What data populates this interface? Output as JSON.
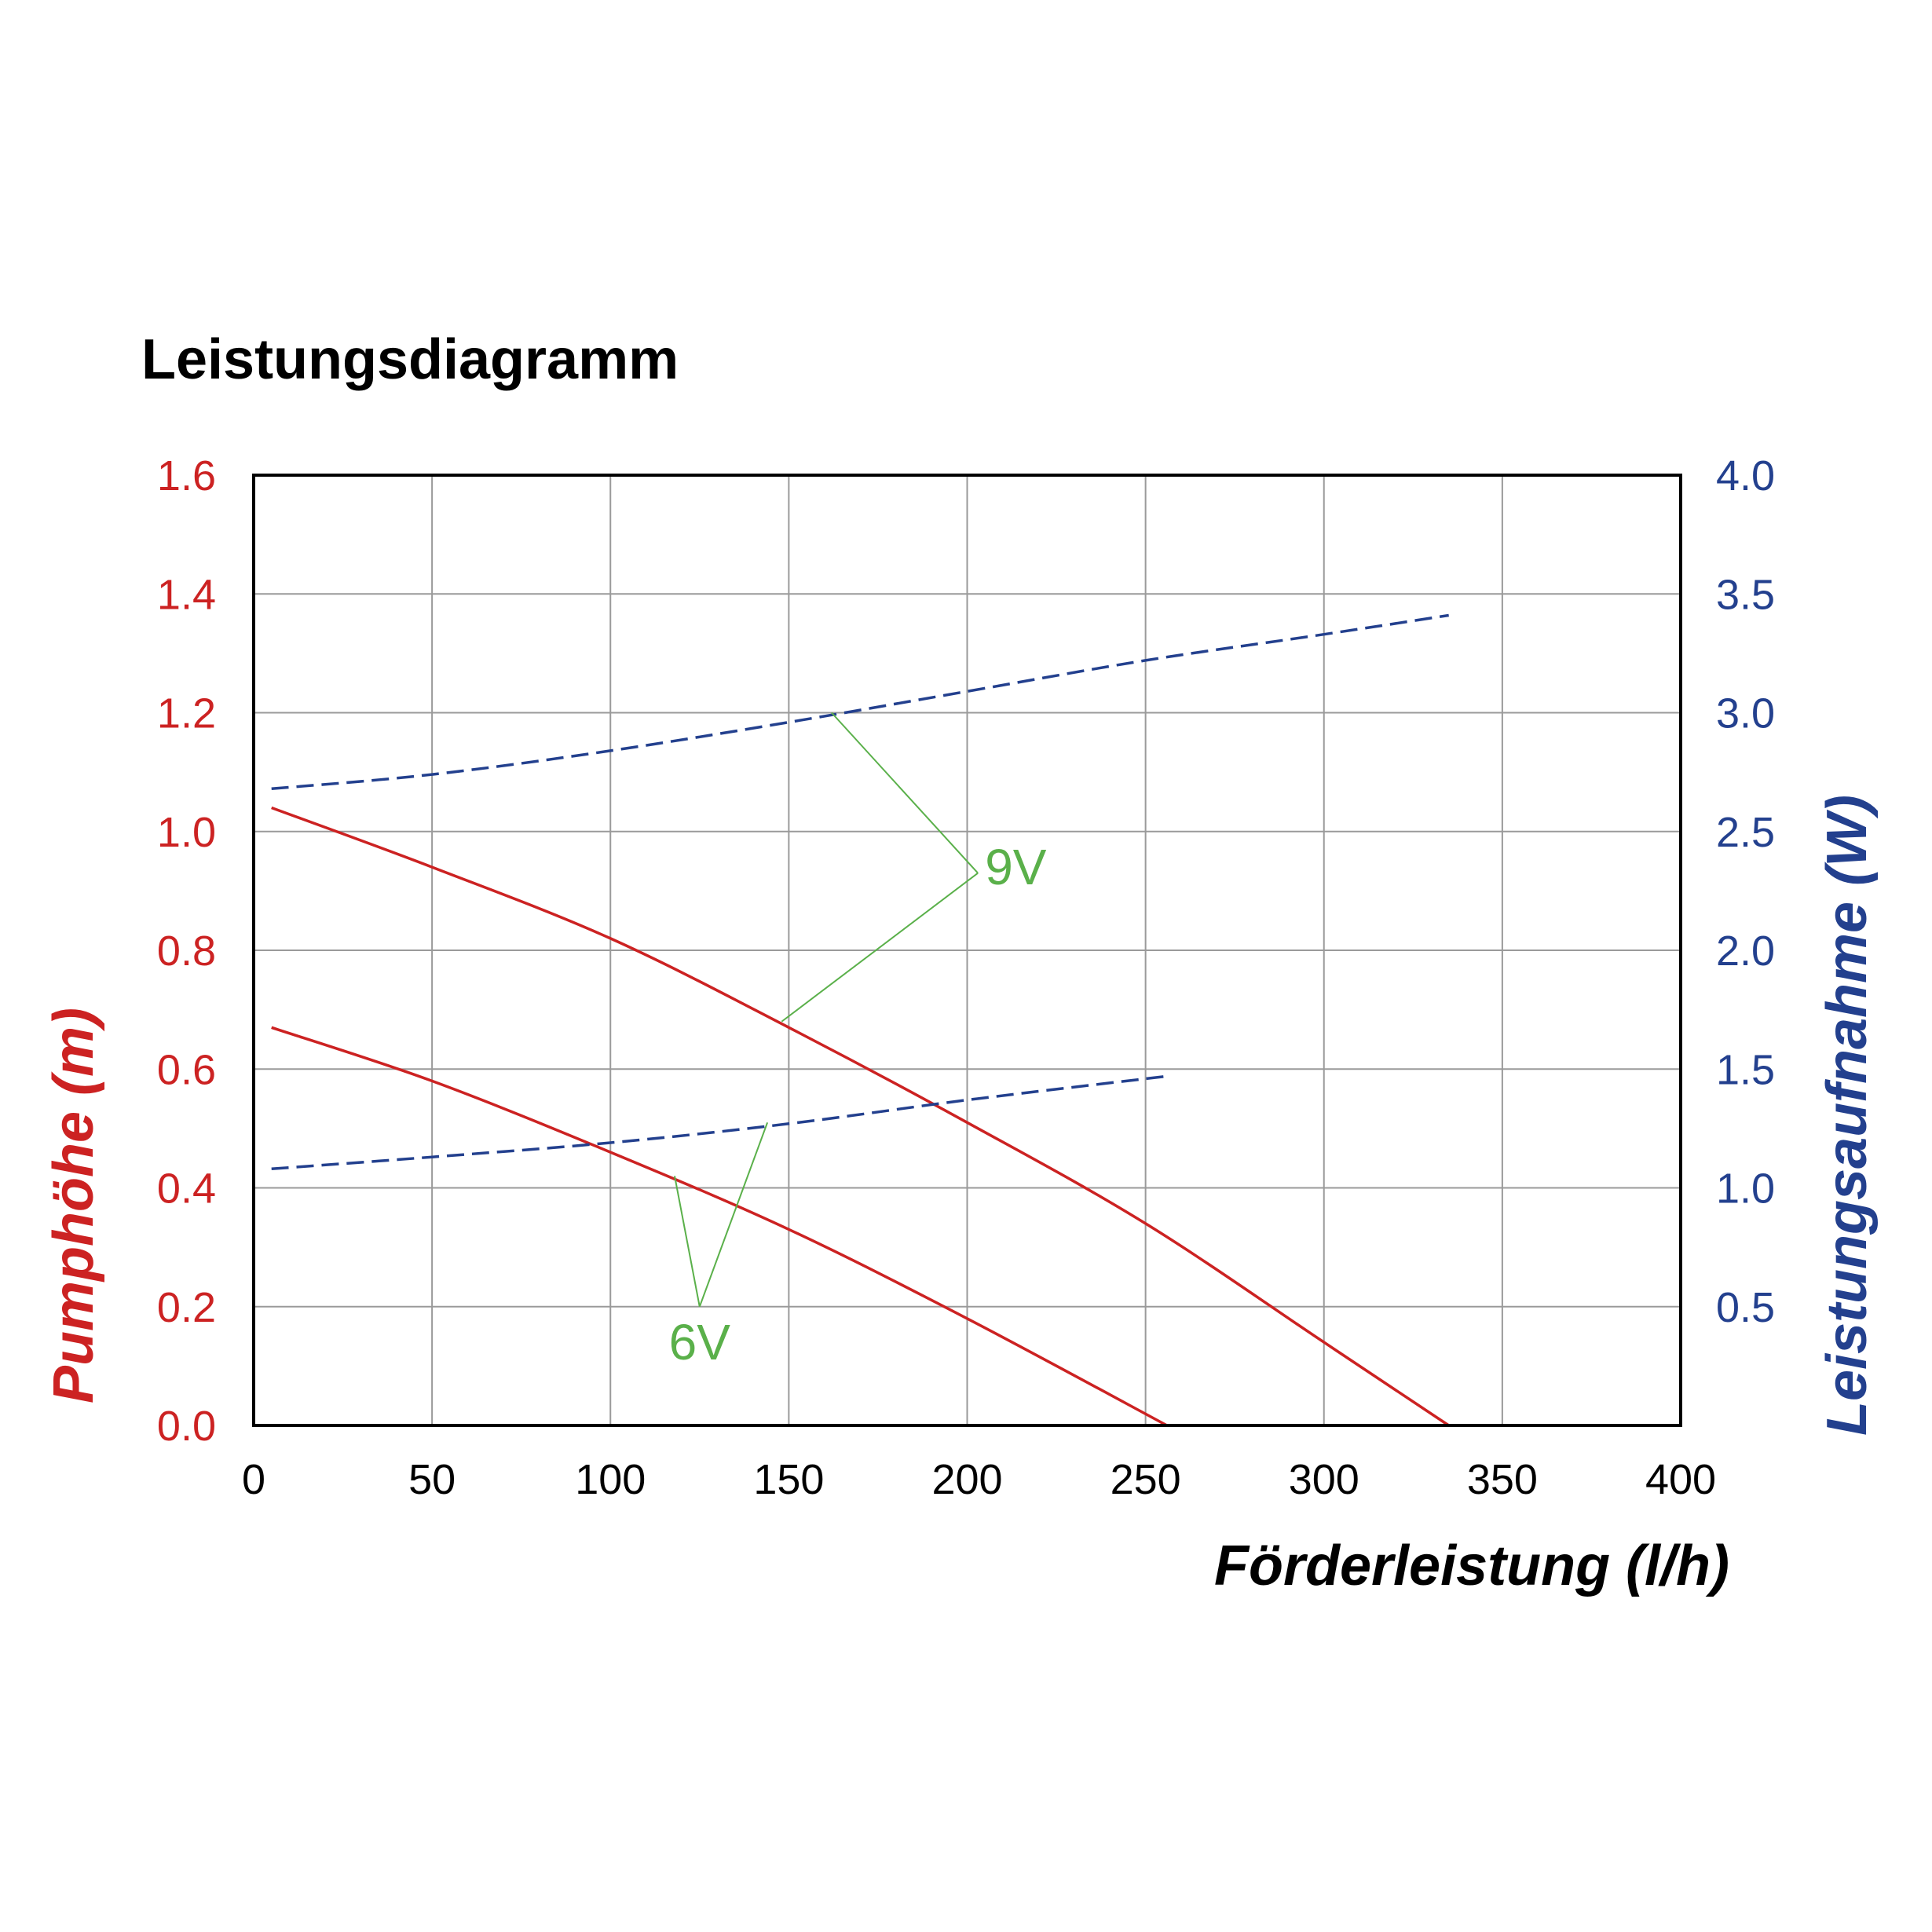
{
  "chart_data": {
    "type": "line",
    "title": "Leistungsdiagramm",
    "xlabel": "Förderleistung (l/h)",
    "ylabel_left": "Pumphöhe (m)",
    "ylabel_right": "Leistungsaufnahme (W)",
    "xlim": [
      0,
      400
    ],
    "ylim_left": [
      0,
      1.6
    ],
    "ylim_right": [
      0,
      4.0
    ],
    "x_ticks": [
      "0",
      "50",
      "100",
      "150",
      "200",
      "250",
      "300",
      "350",
      "400"
    ],
    "y_ticks_left": [
      "0.0",
      "0.2",
      "0.4",
      "0.6",
      "0.8",
      "1.0",
      "1.2",
      "1.4",
      "1.6"
    ],
    "y_ticks_right": [
      "0.5",
      "1.0",
      "1.5",
      "2.0",
      "2.5",
      "3.0",
      "3.5",
      "4.0"
    ],
    "grid": true,
    "colors": {
      "head": "#cc2222",
      "power": "#23408e",
      "annotation": "#5ab04a",
      "grid": "#9a9a9a",
      "frame": "#000000"
    },
    "series": [
      {
        "axis": "left",
        "style": "solid",
        "color": "#cc2222",
        "x": [
          5,
          50,
          100,
          150,
          200,
          250,
          300,
          335
        ],
        "y": [
          1.04,
          0.94,
          0.82,
          0.67,
          0.51,
          0.34,
          0.14,
          0.0
        ]
      },
      {
        "axis": "left",
        "style": "solid",
        "color": "#cc2222",
        "x": [
          5,
          50,
          100,
          150,
          200,
          256
        ],
        "y": [
          0.67,
          0.58,
          0.46,
          0.33,
          0.18,
          0.0
        ]
      },
      {
        "axis": "right",
        "style": "dashed",
        "color": "#23408e",
        "x": [
          5,
          50,
          100,
          150,
          200,
          250,
          300,
          335
        ],
        "y": [
          2.68,
          2.74,
          2.84,
          2.96,
          3.09,
          3.22,
          3.33,
          3.41
        ]
      },
      {
        "axis": "right",
        "style": "dashed",
        "color": "#23408e",
        "x": [
          5,
          50,
          100,
          150,
          200,
          256
        ],
        "y": [
          1.08,
          1.13,
          1.19,
          1.27,
          1.37,
          1.47
        ]
      }
    ],
    "annotations": [
      {
        "text": "9V",
        "label_x": 205,
        "label_y": 0.94,
        "lines": [
          {
            "from": [
              162,
              1.2
            ],
            "to": [
              203,
              0.93
            ]
          },
          {
            "from": [
              203,
              0.93
            ],
            "to": [
              148,
              0.68
            ]
          }
        ]
      },
      {
        "text": "6V",
        "label_x": 125,
        "label_y": 0.14,
        "lines": [
          {
            "from": [
              118,
              0.42
            ],
            "to": [
              125,
              0.2
            ]
          },
          {
            "from": [
              125,
              0.2
            ],
            "to": [
              144,
              0.51
            ]
          }
        ]
      }
    ]
  }
}
